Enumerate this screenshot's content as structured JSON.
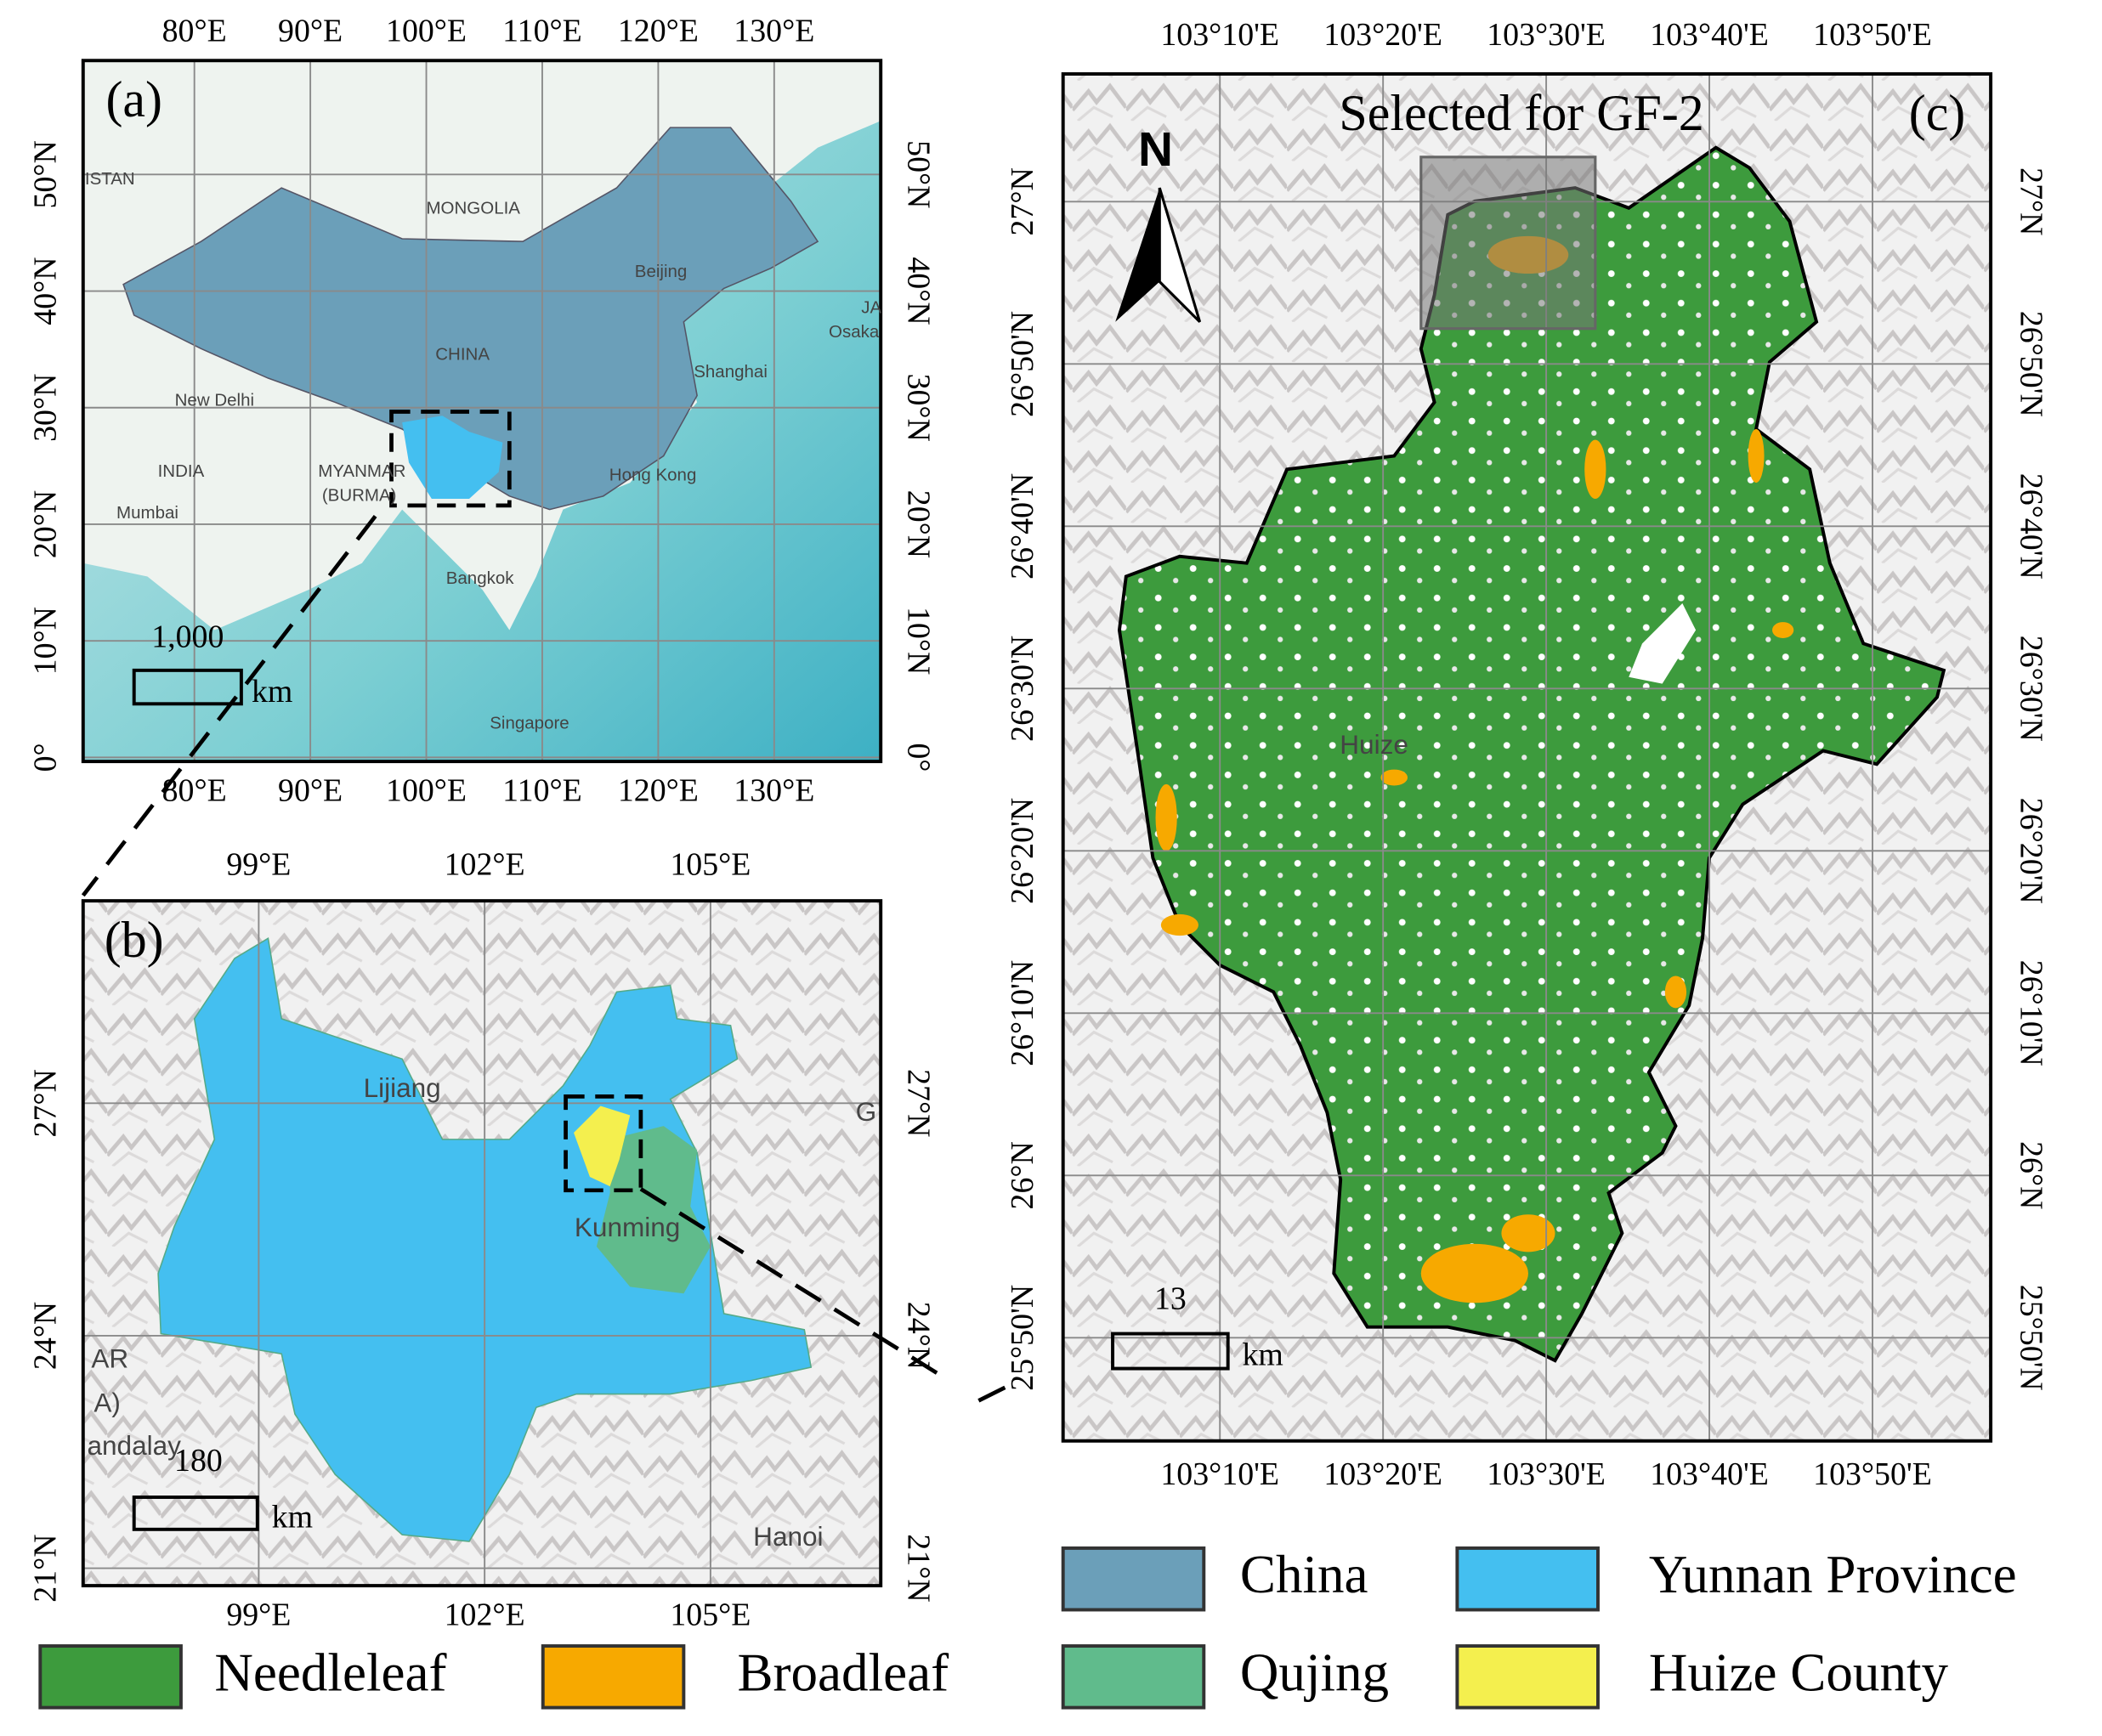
{
  "panels": [
    {
      "label": "(a)",
      "xticks": [
        "80°E",
        "90°E",
        "100°E",
        "110°E",
        "120°E",
        "130°E"
      ],
      "yticks": [
        "0°",
        "10°N",
        "20°N",
        "30°N",
        "40°N",
        "50°N"
      ],
      "places": [
        "ISTAN",
        "MONGOLIA",
        "Beijing",
        "JA",
        "Osaka",
        "CHINA",
        "Shanghai",
        "New Delhi",
        "INDIA",
        "MYANMAR",
        "(BURMA)",
        "Hong Kong",
        "Mumbai",
        "Bangkok",
        "Singapore"
      ],
      "scale": {
        "value": "1,000",
        "unit": "km"
      }
    },
    {
      "label": "(b)",
      "xticks": [
        "99°E",
        "102°E",
        "105°E"
      ],
      "yticks": [
        "21°N",
        "24°N",
        "27°N"
      ],
      "places": [
        "Lijiang",
        "Kunming",
        "G",
        "AR",
        "A)",
        "andalay",
        "Hanoi"
      ],
      "scale": {
        "value": "180",
        "unit": "km"
      }
    },
    {
      "label": "(c)",
      "title": "Selected for GF-2",
      "north": "N",
      "xticks": [
        "103°10'E",
        "103°20'E",
        "103°30'E",
        "103°40'E",
        "103°50'E"
      ],
      "yticks": [
        "25°50'N",
        "26°N",
        "26°10'N",
        "26°20'N",
        "26°30'N",
        "26°40'N",
        "26°50'N",
        "27°N"
      ],
      "places": [
        "Huize"
      ],
      "scale": {
        "value": "13",
        "unit": "km"
      }
    }
  ],
  "legend": [
    {
      "name": "China",
      "color": "#6b9fb9"
    },
    {
      "name": "Yunnan Province",
      "color": "#44bff0"
    },
    {
      "name": "Needleleaf",
      "color": "#3d9b3d"
    },
    {
      "name": "Broadleaf",
      "color": "#f7a900"
    },
    {
      "name": "Qujing",
      "color": "#60bb8c"
    },
    {
      "name": "Huize County",
      "color": "#f4ef4e"
    }
  ]
}
